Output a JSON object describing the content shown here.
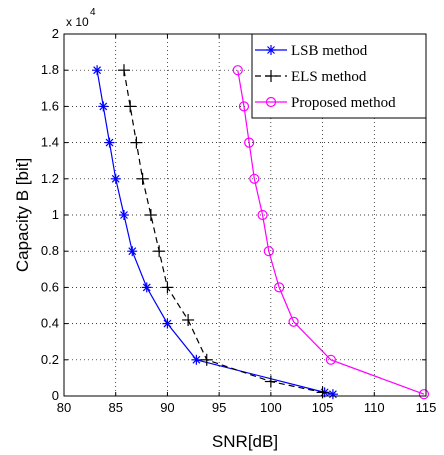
{
  "chart_data": {
    "type": "line",
    "xlabel": "SNR[dB]",
    "ylabel": "Capacity B [bit]",
    "y_multiplier_label": "x 10",
    "y_multiplier_exponent": "4",
    "xlim": [
      80,
      115
    ],
    "ylim": [
      0,
      20000
    ],
    "xticks": [
      "80",
      "85",
      "90",
      "95",
      "100",
      "105",
      "110",
      "115"
    ],
    "yticks": [
      "0",
      "0.2",
      "0.4",
      "0.6",
      "0.8",
      "1",
      "1.2",
      "1.4",
      "1.6",
      "1.8",
      "2"
    ],
    "grid": true,
    "legend_position": "top-right",
    "series": [
      {
        "name": "LSB method",
        "color": "#0000ff",
        "marker": "star",
        "dash": false,
        "points": [
          [
            83.2,
            18000
          ],
          [
            83.8,
            16000
          ],
          [
            84.4,
            14000
          ],
          [
            85.0,
            12000
          ],
          [
            85.8,
            10000
          ],
          [
            86.6,
            8000
          ],
          [
            88.0,
            6000
          ],
          [
            90.0,
            4000
          ],
          [
            92.8,
            2000
          ],
          [
            105.2,
            200
          ],
          [
            106.0,
            100
          ]
        ]
      },
      {
        "name": "ELS method",
        "color": "#000000",
        "marker": "plus",
        "dash": true,
        "points": [
          [
            85.8,
            18000
          ],
          [
            86.4,
            16000
          ],
          [
            87.0,
            14000
          ],
          [
            87.6,
            12000
          ],
          [
            88.4,
            10000
          ],
          [
            89.2,
            8000
          ],
          [
            90.0,
            6000
          ],
          [
            92.0,
            4200
          ],
          [
            93.8,
            2000
          ],
          [
            100.0,
            800
          ],
          [
            105.0,
            200
          ]
        ]
      },
      {
        "name": "Proposed method",
        "color": "#ff00ff",
        "marker": "circle",
        "dash": false,
        "points": [
          [
            96.8,
            18000
          ],
          [
            97.4,
            16000
          ],
          [
            97.9,
            14000
          ],
          [
            98.4,
            12000
          ],
          [
            99.2,
            10000
          ],
          [
            99.8,
            8000
          ],
          [
            100.8,
            6000
          ],
          [
            102.2,
            4100
          ],
          [
            105.8,
            2000
          ],
          [
            114.8,
            100
          ]
        ]
      }
    ]
  }
}
